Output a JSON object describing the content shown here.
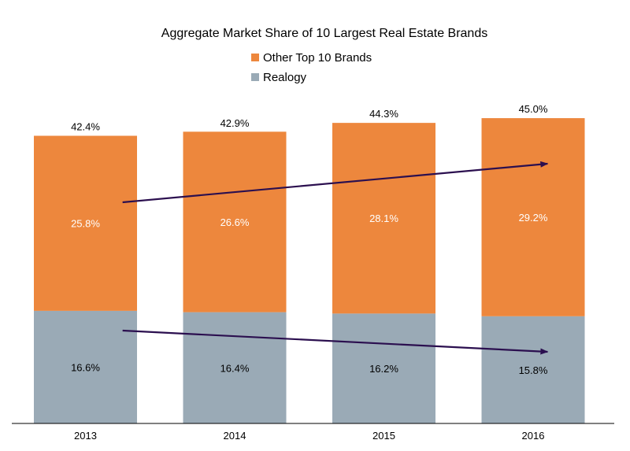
{
  "chart_data": {
    "type": "bar",
    "stacked": true,
    "title": "Aggregate Market Share of 10 Largest Real Estate Brands",
    "categories": [
      "2013",
      "2014",
      "2015",
      "2016"
    ],
    "series": [
      {
        "name": "Realogy",
        "color": "#9aaab6",
        "values": [
          16.6,
          16.4,
          16.2,
          15.8
        ],
        "labels": [
          "16.6%",
          "16.4%",
          "16.2%",
          "15.8%"
        ]
      },
      {
        "name": "Other Top 10 Brands",
        "color": "#ed873d",
        "values": [
          25.8,
          26.6,
          28.1,
          29.2
        ],
        "labels": [
          "25.8%",
          "26.6%",
          "28.1%",
          "29.2%"
        ]
      }
    ],
    "totals": [
      42.4,
      42.9,
      44.3,
      45.0
    ],
    "total_labels": [
      "42.4%",
      "42.9%",
      "44.3%",
      "45.0%"
    ],
    "legend_order": [
      "Other Top 10 Brands",
      "Realogy"
    ],
    "legend_position": "top",
    "grid": false,
    "trend_arrows": [
      {
        "series": "Other Top 10 Brands",
        "direction": "up"
      },
      {
        "series": "Realogy",
        "direction": "down"
      }
    ],
    "arrow_color": "#2b0f4f"
  }
}
